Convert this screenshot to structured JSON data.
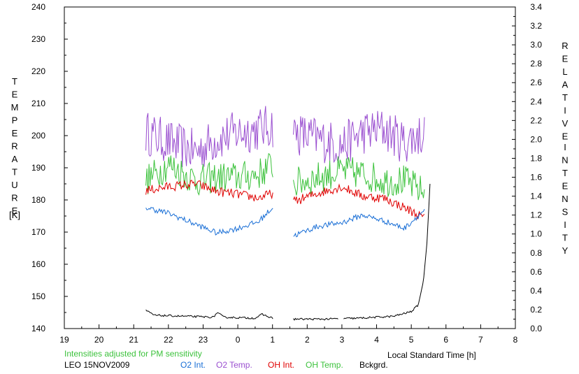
{
  "chart_data": {
    "type": "line",
    "left_axis": {
      "label_letters": [
        "T",
        "E",
        "M",
        "P",
        "E",
        "R",
        "A",
        "T",
        "U",
        "R",
        "E"
      ],
      "unit": "[K]",
      "ylim": [
        140,
        240
      ],
      "ticks": [
        "140",
        "150",
        "160",
        "170",
        "180",
        "190",
        "200",
        "210",
        "220",
        "230",
        "240"
      ]
    },
    "right_axis": {
      "label_word1": [
        "R",
        "E",
        "L",
        "A",
        "T",
        "I",
        "V",
        "E"
      ],
      "label_word2": [
        "I",
        "N",
        "T",
        "E",
        "N",
        "S",
        "I",
        "T",
        "Y"
      ],
      "ylim": [
        0.0,
        3.4
      ],
      "ticks": [
        "0.0",
        "0.2",
        "0.4",
        "0.6",
        "0.8",
        "1.0",
        "1.2",
        "1.4",
        "1.6",
        "1.8",
        "2.0",
        "2.2",
        "2.4",
        "2.6",
        "2.8",
        "3.0",
        "3.2",
        "3.4"
      ]
    },
    "x_axis": {
      "label": "Local Standard Time [h]",
      "xlim": [
        19,
        32
      ],
      "ticks": [
        "19",
        "20",
        "21",
        "22",
        "23",
        "0",
        "1",
        "2",
        "3",
        "4",
        "5",
        "6",
        "7",
        "8"
      ]
    },
    "note": "Intensities adjusted for PM sensitivity",
    "station": "LEO 15NOV2009",
    "legend": [
      {
        "label": "O2 Int.",
        "color": "#1a6fd6"
      },
      {
        "label": "O2 Temp.",
        "color": "#9a4fd0"
      },
      {
        "label": "OH Int.",
        "color": "#e00000"
      },
      {
        "label": "OH Temp.",
        "color": "#3cc23c"
      },
      {
        "label": "Bckgrd.",
        "color": "#000000"
      }
    ],
    "segments": [
      [
        21.35,
        25.02
      ],
      [
        25.6,
        29.4
      ]
    ],
    "series": [
      {
        "name": "O2 Temp.",
        "axis": "left",
        "color": "#9a4fd0",
        "noise": 7,
        "points": [
          [
            21.35,
            201
          ],
          [
            22.0,
            198
          ],
          [
            22.8,
            195
          ],
          [
            23.4,
            199
          ],
          [
            24.0,
            201
          ],
          [
            24.6,
            202
          ],
          [
            25.0,
            203
          ],
          [
            25.6,
            201
          ],
          [
            26.3,
            199
          ],
          [
            27.0,
            197
          ],
          [
            27.6,
            201
          ],
          [
            28.2,
            202
          ],
          [
            28.8,
            198
          ],
          [
            29.4,
            201
          ]
        ]
      },
      {
        "name": "OH Temp.",
        "axis": "left",
        "color": "#3cc23c",
        "noise": 5,
        "points": [
          [
            21.35,
            186
          ],
          [
            22.0,
            191
          ],
          [
            22.8,
            186
          ],
          [
            23.4,
            187
          ],
          [
            24.0,
            187
          ],
          [
            24.6,
            188
          ],
          [
            25.0,
            191
          ],
          [
            25.6,
            185
          ],
          [
            26.3,
            187
          ],
          [
            27.0,
            189
          ],
          [
            27.6,
            188
          ],
          [
            28.2,
            186
          ],
          [
            28.8,
            186
          ],
          [
            29.4,
            182
          ]
        ]
      },
      {
        "name": "OH Int.",
        "axis": "right",
        "color": "#e00000",
        "noise": 0.05,
        "points": [
          [
            21.35,
            1.46
          ],
          [
            22.0,
            1.5
          ],
          [
            22.8,
            1.53
          ],
          [
            23.4,
            1.45
          ],
          [
            24.0,
            1.42
          ],
          [
            24.6,
            1.38
          ],
          [
            25.0,
            1.43
          ],
          [
            25.6,
            1.34
          ],
          [
            26.3,
            1.43
          ],
          [
            27.0,
            1.5
          ],
          [
            27.6,
            1.4
          ],
          [
            28.2,
            1.38
          ],
          [
            28.8,
            1.28
          ],
          [
            29.4,
            1.16
          ]
        ]
      },
      {
        "name": "O2 Int.",
        "axis": "right",
        "color": "#1a6fd6",
        "noise": 0.03,
        "points": [
          [
            21.35,
            1.28
          ],
          [
            22.0,
            1.22
          ],
          [
            22.8,
            1.1
          ],
          [
            23.4,
            1.01
          ],
          [
            24.0,
            1.06
          ],
          [
            24.6,
            1.13
          ],
          [
            25.0,
            1.28
          ],
          [
            25.6,
            0.98
          ],
          [
            26.3,
            1.08
          ],
          [
            27.0,
            1.12
          ],
          [
            27.6,
            1.2
          ],
          [
            28.2,
            1.14
          ],
          [
            28.8,
            1.06
          ],
          [
            29.4,
            1.26
          ]
        ]
      },
      {
        "name": "Bckgrd.",
        "axis": "right",
        "color": "#000000",
        "noise": 0.01,
        "points": [
          [
            21.35,
            0.19
          ],
          [
            21.6,
            0.14
          ],
          [
            22.5,
            0.13
          ],
          [
            23.3,
            0.12
          ],
          [
            23.4,
            0.17
          ],
          [
            23.6,
            0.12
          ],
          [
            24.5,
            0.11
          ],
          [
            24.7,
            0.15
          ],
          [
            25.0,
            0.11
          ],
          [
            25.6,
            0.1
          ],
          [
            26.5,
            0.1
          ],
          [
            27.5,
            0.11
          ],
          [
            28.5,
            0.13
          ],
          [
            29.0,
            0.18
          ],
          [
            29.2,
            0.25
          ],
          [
            29.35,
            0.5
          ],
          [
            29.45,
            0.9
          ],
          [
            29.55,
            1.6
          ]
        ]
      }
    ]
  }
}
